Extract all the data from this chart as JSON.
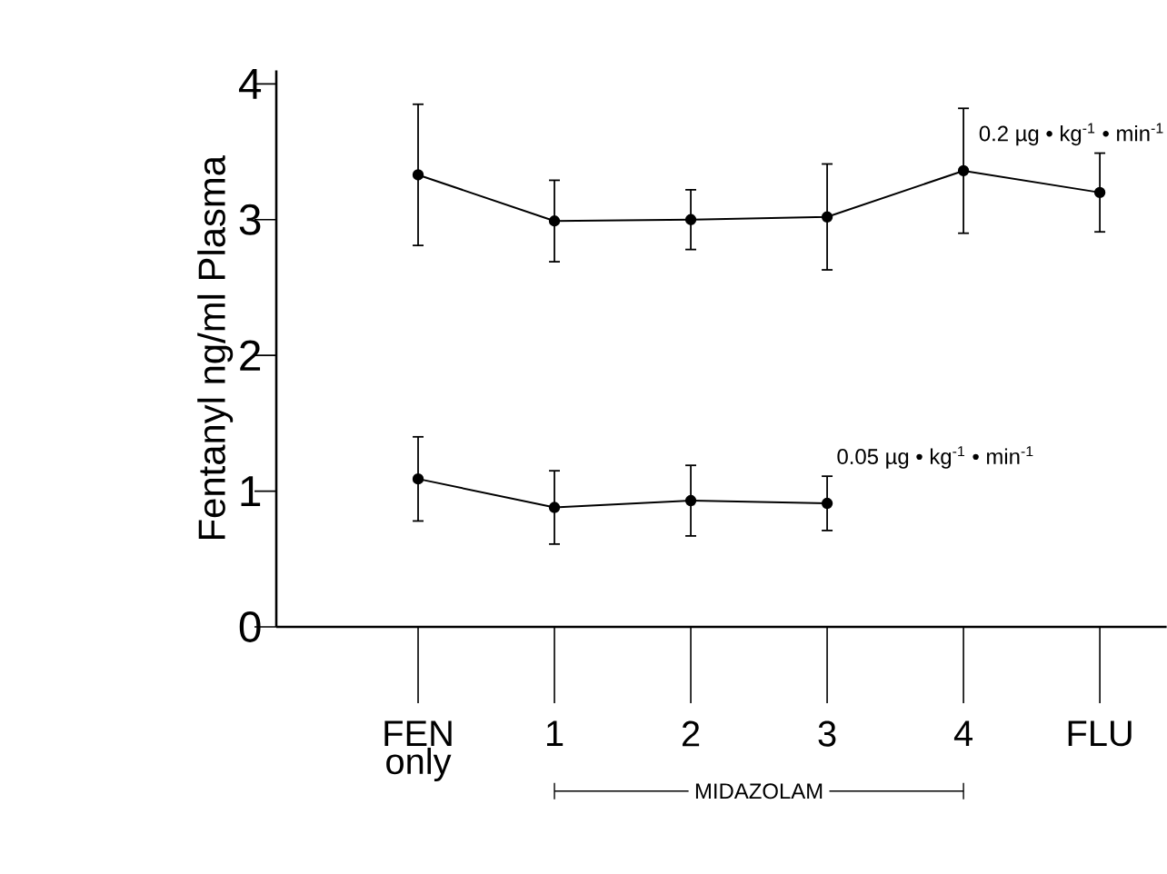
{
  "chart_data": {
    "type": "line",
    "ylabel": "Fentanyl ng/ml Plasma",
    "categories": [
      "FEN only",
      "1",
      "2",
      "3",
      "4",
      "FLU"
    ],
    "series": [
      {
        "name": "0.2 µg • kg$^{-1}$ • min$^{-1}$",
        "color": "#000000",
        "values": [
          3.33,
          2.99,
          3.0,
          3.02,
          3.36,
          3.2
        ],
        "errors": [
          0.52,
          0.3,
          0.22,
          0.39,
          0.46,
          0.29
        ]
      },
      {
        "name": "0.05 µg • kg$^{-1}$ • min$^{-1}$",
        "color": "#000000",
        "values": [
          1.09,
          0.88,
          0.93,
          0.91,
          null,
          null
        ],
        "errors": [
          0.31,
          0.27,
          0.26,
          0.2,
          null,
          null
        ]
      }
    ],
    "ylim": [
      0,
      4.1
    ],
    "yticks": [
      0,
      1,
      2,
      3,
      4
    ],
    "marker": "circle",
    "line_style": "solid",
    "grid": false,
    "legend": false,
    "annotations": [
      "MIDAZOLAM"
    ]
  }
}
